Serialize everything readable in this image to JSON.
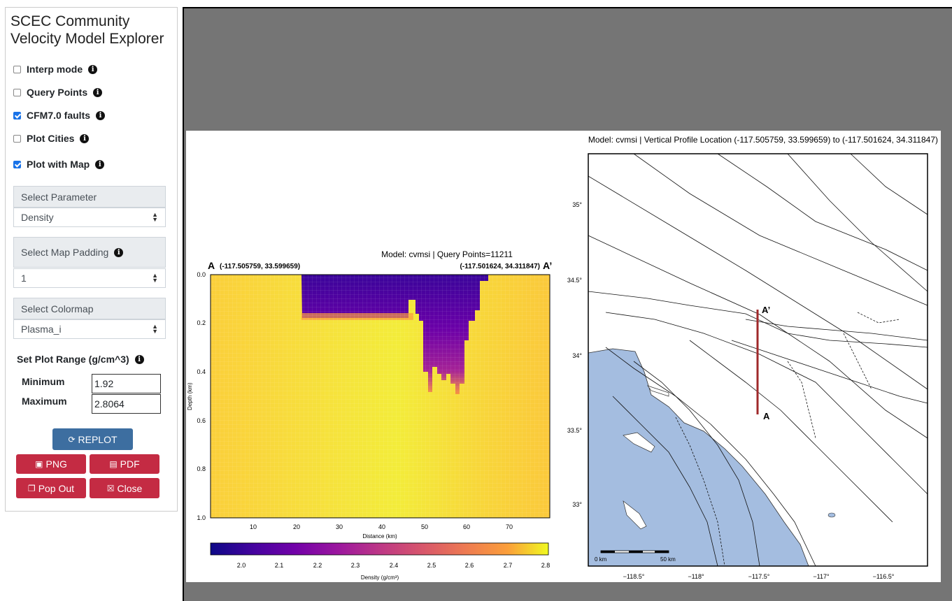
{
  "app": {
    "title_line1": "SCEC Community",
    "title_line2": "Velocity Model Explorer"
  },
  "options": [
    {
      "label": "Interp mode",
      "checked": false
    },
    {
      "label": "Query Points",
      "checked": false
    },
    {
      "label": "CFM7.0 faults",
      "checked": true
    },
    {
      "label": "Plot Cities",
      "checked": false
    },
    {
      "label": "Plot with Map",
      "checked": true
    }
  ],
  "parameter": {
    "label": "Select Parameter",
    "value": "Density"
  },
  "padding": {
    "label": "Select Map Padding",
    "value": "1"
  },
  "colormap": {
    "label": "Select Colormap",
    "value": "Plasma_i"
  },
  "range": {
    "title": "Set Plot Range (g/cm^3)",
    "min_label": "Minimum",
    "min_value": "1.92",
    "max_label": "Maximum",
    "max_value": "2.8064"
  },
  "buttons": {
    "replot": "REPLOT",
    "png": "PNG",
    "pdf": "PDF",
    "popout": "Pop Out",
    "close": "Close"
  },
  "cross_section": {
    "title": "Model: cvmsi | Query Points=11211",
    "left_marker": "A",
    "left_coord": "(-117.505759, 33.599659)",
    "right_marker": "A’",
    "right_coord": "(-117.501624, 34.311847)",
    "ylabel": "Depth (km)",
    "xlabel": "Distance (km)",
    "yticks": [
      "0.0",
      "0.2",
      "0.4",
      "0.6",
      "0.8",
      "1.0"
    ],
    "xticks": [
      "10",
      "20",
      "30",
      "40",
      "50",
      "60",
      "70"
    ],
    "colorbar_label": "Density (g/cm³)",
    "colorbar_ticks": [
      "2.0",
      "2.1",
      "2.2",
      "2.3",
      "2.4",
      "2.5",
      "2.6",
      "2.7",
      "2.8"
    ]
  },
  "map": {
    "title": "Model: cvmsi | Vertical Profile Location (-117.505759, 33.599659) to (-117.501624, 34.311847)",
    "lat_ticks": [
      "35°",
      "34.5°",
      "34°",
      "33.5°",
      "33°"
    ],
    "lon_ticks": [
      "−118.5°",
      "−118°",
      "−117.5°",
      "−117°",
      "−116.5°"
    ],
    "marker_a": "A",
    "marker_a_prime": "A’",
    "scale_left": "0 km",
    "scale_right": "50 km"
  },
  "colors": {
    "ocean": "#a4bde0",
    "profile_line": "#a0282a",
    "plasma_low": "#0d0887",
    "plasma_high": "#f0f921"
  }
}
